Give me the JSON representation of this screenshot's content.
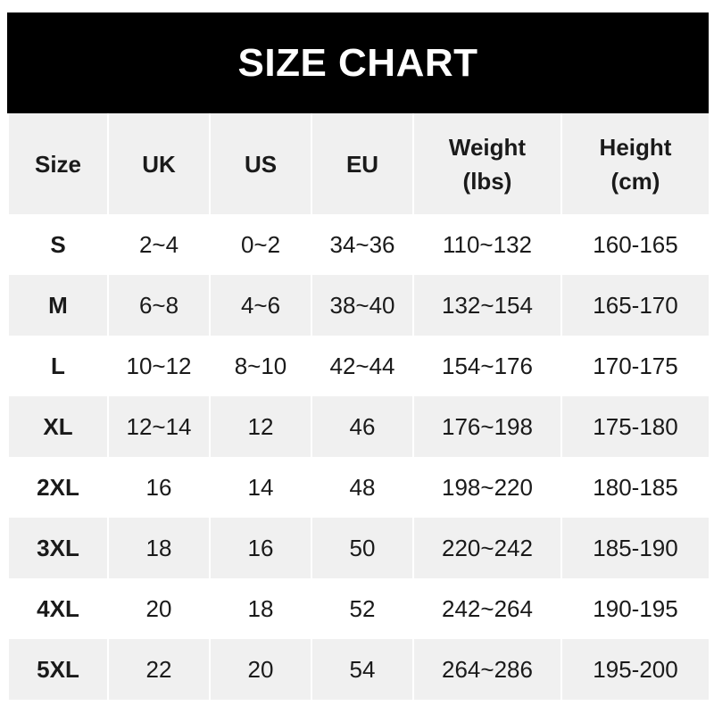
{
  "title": "SIZE CHART",
  "headers": [
    "Size",
    "UK",
    "US",
    "EU",
    "Weight\n(lbs)",
    "Height\n(cm)"
  ],
  "header_lines": [
    [
      "Size"
    ],
    [
      "UK"
    ],
    [
      "US"
    ],
    [
      "EU"
    ],
    [
      "Weight",
      "(lbs)"
    ],
    [
      "Height",
      "(cm)"
    ]
  ],
  "rows": [
    [
      "S",
      "2~4",
      "0~2",
      "34~36",
      "110~132",
      "160-165"
    ],
    [
      "M",
      "6~8",
      "4~6",
      "38~40",
      "132~154",
      "165-170"
    ],
    [
      "L",
      "10~12",
      "8~10",
      "42~44",
      "154~176",
      "170-175"
    ],
    [
      "XL",
      "12~14",
      "12",
      "46",
      "176~198",
      "175-180"
    ],
    [
      "2XL",
      "16",
      "14",
      "48",
      "198~220",
      "180-185"
    ],
    [
      "3XL",
      "18",
      "16",
      "50",
      "220~242",
      "185-190"
    ],
    [
      "4XL",
      "20",
      "18",
      "52",
      "242~264",
      "190-195"
    ],
    [
      "5XL",
      "22",
      "20",
      "54",
      "264~286",
      "195-200"
    ]
  ],
  "colors": {
    "title_bg": "#000000",
    "title_text": "#ffffff",
    "stripe": "#f0f0f0",
    "text": "#1a1a1a"
  }
}
